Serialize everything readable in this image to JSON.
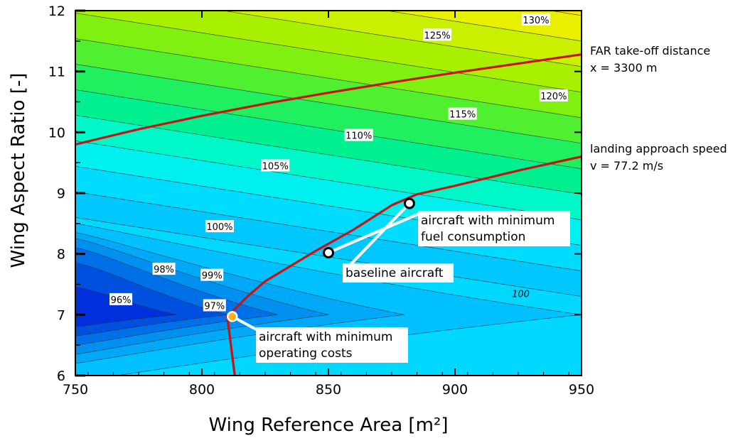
{
  "chart_data": {
    "type": "contour",
    "title": "",
    "xlabel": "Wing Reference Area  [m²]",
    "ylabel": "Wing Aspect Ratio  [-]",
    "xlim": [
      750,
      950
    ],
    "ylim": [
      6,
      12
    ],
    "x_ticks": [
      750,
      800,
      850,
      900,
      950
    ],
    "y_ticks": [
      6,
      7,
      8,
      9,
      10,
      11,
      12
    ],
    "grid": false,
    "contour_levels": [
      "96%",
      "97%",
      "98%",
      "99%",
      "100%",
      "105%",
      "110%",
      "115%",
      "120%",
      "125%",
      "130%"
    ],
    "contour_labels": [
      {
        "text": "96%",
        "x": 768,
        "y": 7.25
      },
      {
        "text": "97%",
        "x": 805,
        "y": 7.15
      },
      {
        "text": "98%",
        "x": 785,
        "y": 7.75
      },
      {
        "text": "99%",
        "x": 804,
        "y": 7.65
      },
      {
        "text": "100%",
        "x": 807,
        "y": 8.45
      },
      {
        "text": "105%",
        "x": 829,
        "y": 9.45
      },
      {
        "text": "110%",
        "x": 862,
        "y": 9.95
      },
      {
        "text": "115%",
        "x": 903,
        "y": 10.3
      },
      {
        "text": "120%",
        "x": 939,
        "y": 10.6
      },
      {
        "text": "125%",
        "x": 893,
        "y": 11.6
      },
      {
        "text": "130%",
        "x": 932,
        "y": 11.85
      },
      {
        "text": "100",
        "x": 926,
        "y": 7.35
      }
    ],
    "series": [
      {
        "name": "FAR take-off distance",
        "x": [
          750,
          775,
          800,
          825,
          850,
          875,
          900,
          925,
          950
        ],
        "y": [
          9.8,
          10.05,
          10.27,
          10.47,
          10.65,
          10.82,
          10.98,
          11.13,
          11.28
        ],
        "color": "#cc1111"
      },
      {
        "name": "landing approach speed",
        "x": [
          813,
          810,
          812,
          818,
          825,
          835,
          845,
          860,
          875,
          885,
          900,
          925,
          950
        ],
        "y": [
          6.0,
          6.98,
          7.05,
          7.3,
          7.55,
          7.8,
          8.05,
          8.4,
          8.8,
          8.98,
          9.12,
          9.37,
          9.6
        ],
        "color": "#cc1111"
      }
    ],
    "constraint_labels": [
      {
        "line1": "FAR take-off distance",
        "line2": "x = 3300 m"
      },
      {
        "line1": "landing approach speed",
        "line2": "v = 77.2 m/s"
      }
    ],
    "points": [
      {
        "name": "baseline aircraft",
        "x": 850,
        "y": 8.02,
        "fill": "#ffffff"
      },
      {
        "name": "aircraft with minimum fuel consumption",
        "x": 882,
        "y": 8.83,
        "fill": "#ffffff"
      },
      {
        "name": "aircraft with minimum operating costs",
        "x": 812,
        "y": 6.97,
        "fill": "#ffb020"
      }
    ],
    "annotations": [
      {
        "lines": [
          "aircraft with minimum",
          "fuel consumption"
        ]
      },
      {
        "lines": [
          "baseline aircraft"
        ]
      },
      {
        "lines": [
          "aircraft with minimum",
          "operating costs"
        ]
      }
    ],
    "colors": {
      "constraint_line": "#cc1111",
      "contour_line": "#333333",
      "fill_lowest": "#0a16d8",
      "fill_mid": "#00e8ff",
      "fill_high": "#8cf000",
      "fill_top": "#ff2000"
    }
  }
}
